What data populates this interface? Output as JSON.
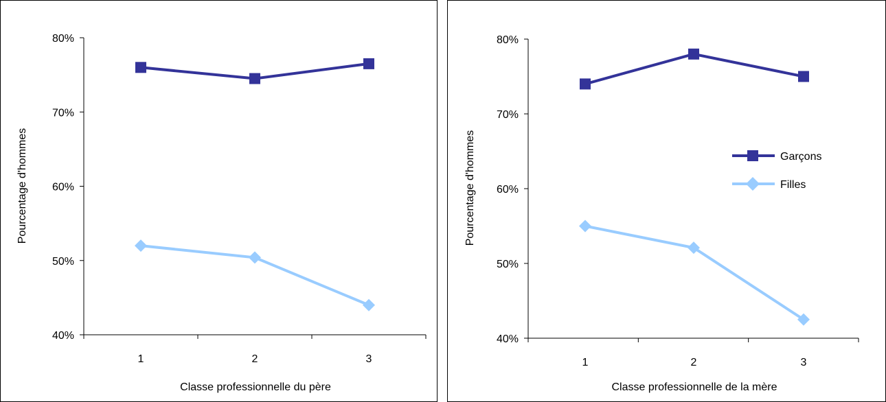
{
  "chart_data": [
    {
      "type": "line",
      "categories": [
        "1",
        "2",
        "3"
      ],
      "series": [
        {
          "key": "garcons",
          "values": [
            76,
            74.5,
            76.5
          ],
          "color": "#333399",
          "marker": "square"
        },
        {
          "key": "filles",
          "values": [
            52,
            50.4,
            44
          ],
          "color": "#99CCFF",
          "marker": "diamond"
        }
      ],
      "title": "",
      "xlabel": "Classe professionnelle du père",
      "ylabel": "Pourcentage d'hommes",
      "ylim": [
        40,
        80
      ],
      "yticks": [
        "40%",
        "50%",
        "60%",
        "70%",
        "80%"
      ],
      "grid": false,
      "legend": null
    },
    {
      "type": "line",
      "categories": [
        "1",
        "2",
        "3"
      ],
      "series": [
        {
          "key": "garcons",
          "name": "Garçons",
          "values": [
            74,
            78,
            75
          ],
          "color": "#333399",
          "marker": "square"
        },
        {
          "key": "filles",
          "name": "Filles",
          "values": [
            55,
            52.1,
            42.5
          ],
          "color": "#99CCFF",
          "marker": "diamond"
        }
      ],
      "title": "",
      "xlabel": "Classe professionnelle de la mère",
      "ylabel": "Pourcentage d'hommes",
      "ylim": [
        40,
        80
      ],
      "yticks": [
        "40%",
        "50%",
        "60%",
        "70%",
        "80%"
      ],
      "grid": false,
      "legend": "right"
    }
  ]
}
